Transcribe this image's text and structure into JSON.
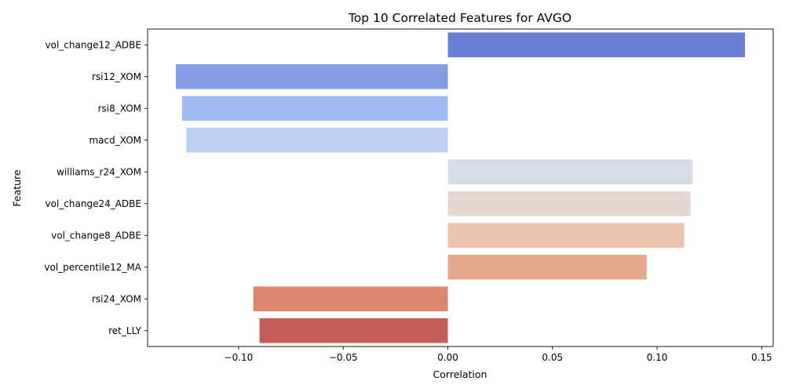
{
  "chart_data": {
    "type": "bar",
    "orientation": "horizontal",
    "title": "Top 10 Correlated Features for AVGO",
    "xlabel": "Correlation",
    "ylabel": "Feature",
    "categories": [
      "vol_change12_ADBE",
      "rsi12_XOM",
      "rsi8_XOM",
      "macd_XOM",
      "williams_r24_XOM",
      "vol_change24_ADBE",
      "vol_change8_ADBE",
      "vol_percentile12_MA",
      "rsi24_XOM",
      "ret_LLY"
    ],
    "values": [
      0.142,
      -0.13,
      -0.127,
      -0.125,
      0.117,
      0.116,
      0.113,
      0.095,
      -0.093,
      -0.09
    ],
    "colors": [
      "#6a7fd6",
      "#829fe6",
      "#a0baf4",
      "#bdd0f4",
      "#d4dbe9",
      "#e4d7d0",
      "#ecc3ae",
      "#e7a78c",
      "#da8670",
      "#c45e55"
    ],
    "xlim": [
      -0.1435,
      0.1555
    ],
    "xticks": [
      -0.1,
      -0.05,
      0.0,
      0.05,
      0.1,
      0.15
    ],
    "xtick_labels": [
      "−0.10",
      "−0.05",
      "0.00",
      "0.05",
      "0.10",
      "0.15"
    ],
    "grid": false,
    "legend": "none"
  }
}
